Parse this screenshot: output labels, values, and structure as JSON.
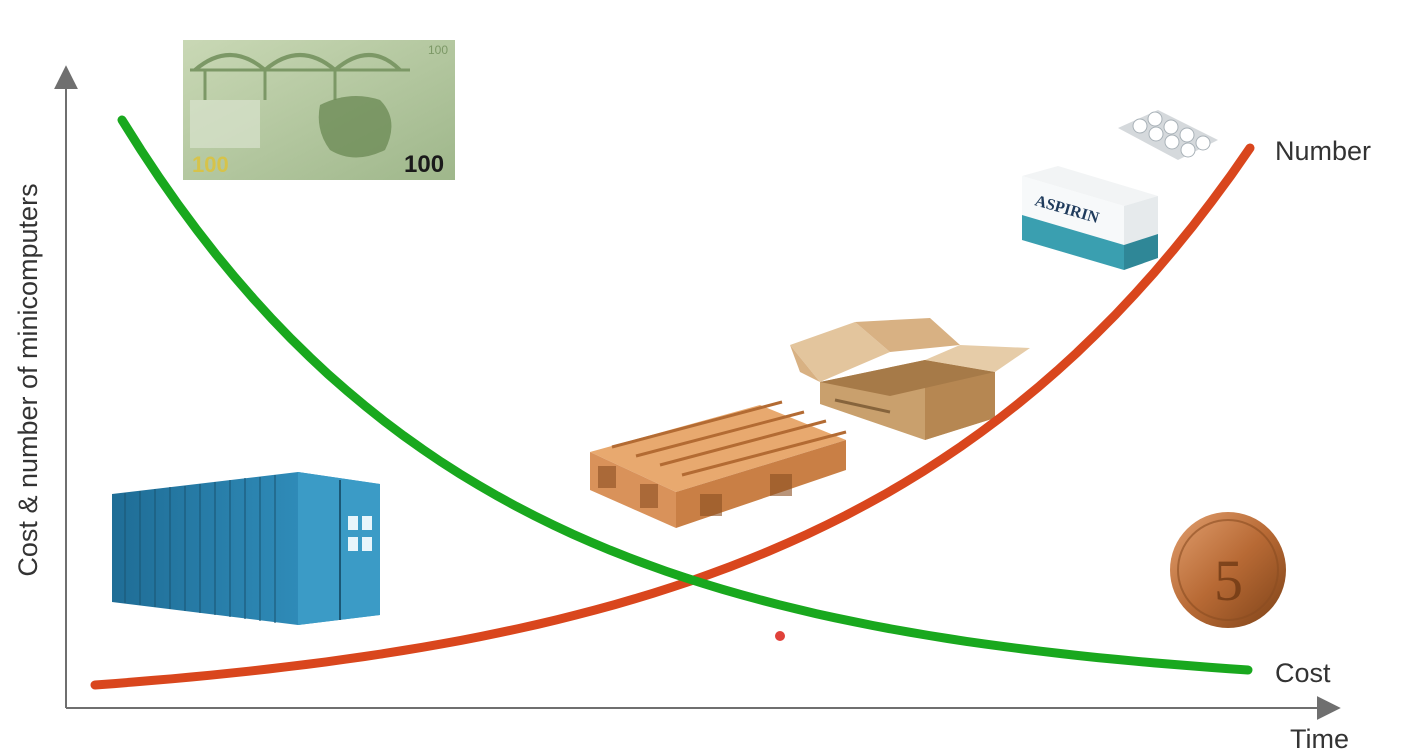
{
  "diagram": {
    "y_axis_label": "Cost & number of minicomputers",
    "x_axis_label": "Time",
    "curves": [
      {
        "label": "Number",
        "color": "#d9461d",
        "trend": "increasing"
      },
      {
        "label": "Cost",
        "color": "#19a81e",
        "trend": "decreasing"
      }
    ],
    "banknote": {
      "amount": "100",
      "corner_text": "100",
      "left_text": "100"
    },
    "aspirin_box": {
      "brand": "ASPIRIN"
    },
    "coin": {
      "value": "5"
    },
    "colors": {
      "axis": "#6f6f6f",
      "number_curve": "#d9461d",
      "cost_curve": "#19a81e",
      "container": "#2f8bb8",
      "pallet": "#d9925a",
      "cardboard": "#d8b183",
      "coin": "#b86a35",
      "banknote": "#b7c9a5"
    },
    "icons": [
      "banknote-icon",
      "shipping-container-icon",
      "pallet-icon",
      "cardboard-box-icon",
      "aspirin-pack-icon",
      "coin-icon"
    ]
  }
}
